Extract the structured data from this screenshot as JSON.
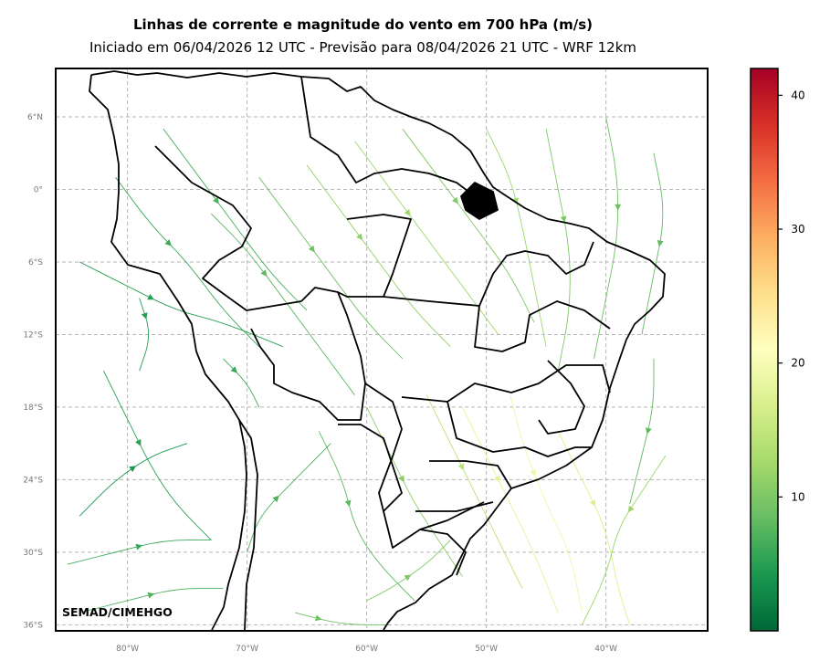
{
  "title": "Linhas de corrente e magnitude do vento em 700 hPa (m/s)",
  "subtitle": "Iniciado em 06/04/2026 12 UTC - Previsão para 08/04/2026 21 UTC - WRF 12km",
  "credit": "SEMAD/CIMEHGO",
  "map": {
    "lat_ticks": [
      "6°N",
      "0°",
      "6°S",
      "12°S",
      "18°S",
      "24°S",
      "30°S",
      "36°S"
    ],
    "lon_ticks": [
      "80°W",
      "70°W",
      "60°W",
      "50°W",
      "40°W"
    ],
    "gridlines": true,
    "extent_lon": [
      -86,
      -31.5
    ],
    "extent_lat": [
      -36.5,
      10
    ]
  },
  "colorbar": {
    "colormap": "RdYlGn_r",
    "range": [
      0,
      42
    ],
    "ticks": [
      "10",
      "20",
      "30",
      "40"
    ],
    "tick_values": [
      10,
      20,
      30,
      40
    ],
    "colors": [
      "#006837",
      "#1a9850",
      "#66bd63",
      "#a6d96a",
      "#d9ef8b",
      "#ffffbf",
      "#fee08b",
      "#fdae61",
      "#f46d43",
      "#d73027",
      "#a50026"
    ]
  },
  "streamlines": [
    {
      "points": [
        [
          -73,
          -2
        ],
        [
          -70,
          -5
        ],
        [
          -67,
          -9
        ],
        [
          -64,
          -13
        ],
        [
          -61,
          -17
        ]
      ],
      "speed": 8
    },
    {
      "points": [
        [
          -69,
          1
        ],
        [
          -66,
          -3
        ],
        [
          -63,
          -7
        ],
        [
          -60,
          -11
        ],
        [
          -57,
          -14
        ]
      ],
      "speed": 9
    },
    {
      "points": [
        [
          -65,
          2
        ],
        [
          -62,
          -2
        ],
        [
          -59,
          -6
        ],
        [
          -56,
          -10
        ],
        [
          -53,
          -13
        ]
      ],
      "speed": 11
    },
    {
      "points": [
        [
          -61,
          4
        ],
        [
          -58,
          0
        ],
        [
          -55,
          -4
        ],
        [
          -52,
          -8
        ],
        [
          -49,
          -12
        ]
      ],
      "speed": 12
    },
    {
      "points": [
        [
          -57,
          5
        ],
        [
          -54,
          1
        ],
        [
          -51,
          -3
        ],
        [
          -48,
          -7
        ],
        [
          -46,
          -11
        ]
      ],
      "speed": 10
    },
    {
      "points": [
        [
          -77,
          5
        ],
        [
          -74,
          1
        ],
        [
          -71,
          -3
        ],
        [
          -68,
          -7
        ],
        [
          -65,
          -10
        ]
      ],
      "speed": 7
    },
    {
      "points": [
        [
          -81,
          1
        ],
        [
          -78,
          -3
        ],
        [
          -75,
          -6
        ],
        [
          -72,
          -10
        ],
        [
          -69,
          -13
        ]
      ],
      "speed": 6
    },
    {
      "points": [
        [
          -84,
          -6
        ],
        [
          -80,
          -8
        ],
        [
          -76,
          -10
        ],
        [
          -72,
          -11
        ],
        [
          -67,
          -13
        ]
      ],
      "speed": 5
    },
    {
      "points": [
        [
          -50,
          5
        ],
        [
          -48,
          1
        ],
        [
          -47,
          -3
        ],
        [
          -46,
          -8
        ],
        [
          -45,
          -13
        ]
      ],
      "speed": 12
    },
    {
      "points": [
        [
          -45,
          5
        ],
        [
          -44,
          0
        ],
        [
          -43,
          -5
        ],
        [
          -43,
          -10
        ],
        [
          -44,
          -15
        ]
      ],
      "speed": 10
    },
    {
      "points": [
        [
          -40,
          6
        ],
        [
          -39,
          1
        ],
        [
          -39,
          -4
        ],
        [
          -40,
          -9
        ],
        [
          -41,
          -14
        ]
      ],
      "speed": 9
    },
    {
      "points": [
        [
          -36,
          3
        ],
        [
          -35,
          -2
        ],
        [
          -36,
          -7
        ],
        [
          -37,
          -12
        ]
      ],
      "speed": 8
    },
    {
      "points": [
        [
          -82,
          -15
        ],
        [
          -80,
          -19
        ],
        [
          -78,
          -23
        ],
        [
          -76,
          -26
        ],
        [
          -73,
          -29
        ]
      ],
      "speed": 5
    },
    {
      "points": [
        [
          -84,
          -27
        ],
        [
          -81,
          -24
        ],
        [
          -78,
          -22
        ],
        [
          -75,
          -21
        ]
      ],
      "speed": 4
    },
    {
      "points": [
        [
          -85,
          -31
        ],
        [
          -81,
          -30
        ],
        [
          -77,
          -29
        ],
        [
          -73,
          -29
        ]
      ],
      "speed": 6
    },
    {
      "points": [
        [
          -84,
          -35
        ],
        [
          -80,
          -34
        ],
        [
          -76,
          -33
        ],
        [
          -72,
          -33
        ]
      ],
      "speed": 7
    },
    {
      "points": [
        [
          -64,
          -20
        ],
        [
          -62,
          -24
        ],
        [
          -61,
          -28
        ],
        [
          -59,
          -31
        ],
        [
          -56,
          -34
        ]
      ],
      "speed": 8
    },
    {
      "points": [
        [
          -60,
          -18
        ],
        [
          -58,
          -22
        ],
        [
          -56,
          -26
        ],
        [
          -54,
          -29
        ],
        [
          -52,
          -32
        ]
      ],
      "speed": 11
    },
    {
      "points": [
        [
          -55,
          -17
        ],
        [
          -53,
          -21
        ],
        [
          -51,
          -25
        ],
        [
          -49,
          -29
        ],
        [
          -47,
          -33
        ]
      ],
      "speed": 14
    },
    {
      "points": [
        [
          -52,
          -18
        ],
        [
          -50,
          -22
        ],
        [
          -48,
          -26
        ],
        [
          -46,
          -30
        ],
        [
          -44,
          -35
        ]
      ],
      "speed": 18
    },
    {
      "points": [
        [
          -48,
          -17
        ],
        [
          -47,
          -21
        ],
        [
          -45,
          -26
        ],
        [
          -43,
          -30
        ],
        [
          -42,
          -35
        ]
      ],
      "speed": 19
    },
    {
      "points": [
        [
          -44,
          -20
        ],
        [
          -42,
          -24
        ],
        [
          -40,
          -28
        ],
        [
          -39,
          -33
        ],
        [
          -38,
          -36
        ]
      ],
      "speed": 17
    },
    {
      "points": [
        [
          -35,
          -22
        ],
        [
          -37,
          -25
        ],
        [
          -39,
          -28
        ],
        [
          -40,
          -32
        ],
        [
          -42,
          -36
        ]
      ],
      "speed": 12
    },
    {
      "points": [
        [
          -36,
          -14
        ],
        [
          -36,
          -18
        ],
        [
          -37,
          -22
        ],
        [
          -38,
          -26
        ]
      ],
      "speed": 8
    },
    {
      "points": [
        [
          -70,
          -30
        ],
        [
          -69,
          -27
        ],
        [
          -66,
          -24
        ],
        [
          -63,
          -21
        ]
      ],
      "speed": 7
    },
    {
      "points": [
        [
          -60,
          -34
        ],
        [
          -58,
          -33
        ],
        [
          -55,
          -31
        ],
        [
          -53,
          -29
        ]
      ],
      "speed": 10
    },
    {
      "points": [
        [
          -66,
          -35
        ],
        [
          -62,
          -36
        ],
        [
          -58,
          -36
        ]
      ],
      "speed": 9
    },
    {
      "points": [
        [
          -72,
          -14
        ],
        [
          -70,
          -16
        ],
        [
          -69,
          -18
        ]
      ],
      "speed": 6
    },
    {
      "points": [
        [
          -79,
          -9
        ],
        [
          -78,
          -12
        ],
        [
          -79,
          -15
        ]
      ],
      "speed": 5
    }
  ]
}
